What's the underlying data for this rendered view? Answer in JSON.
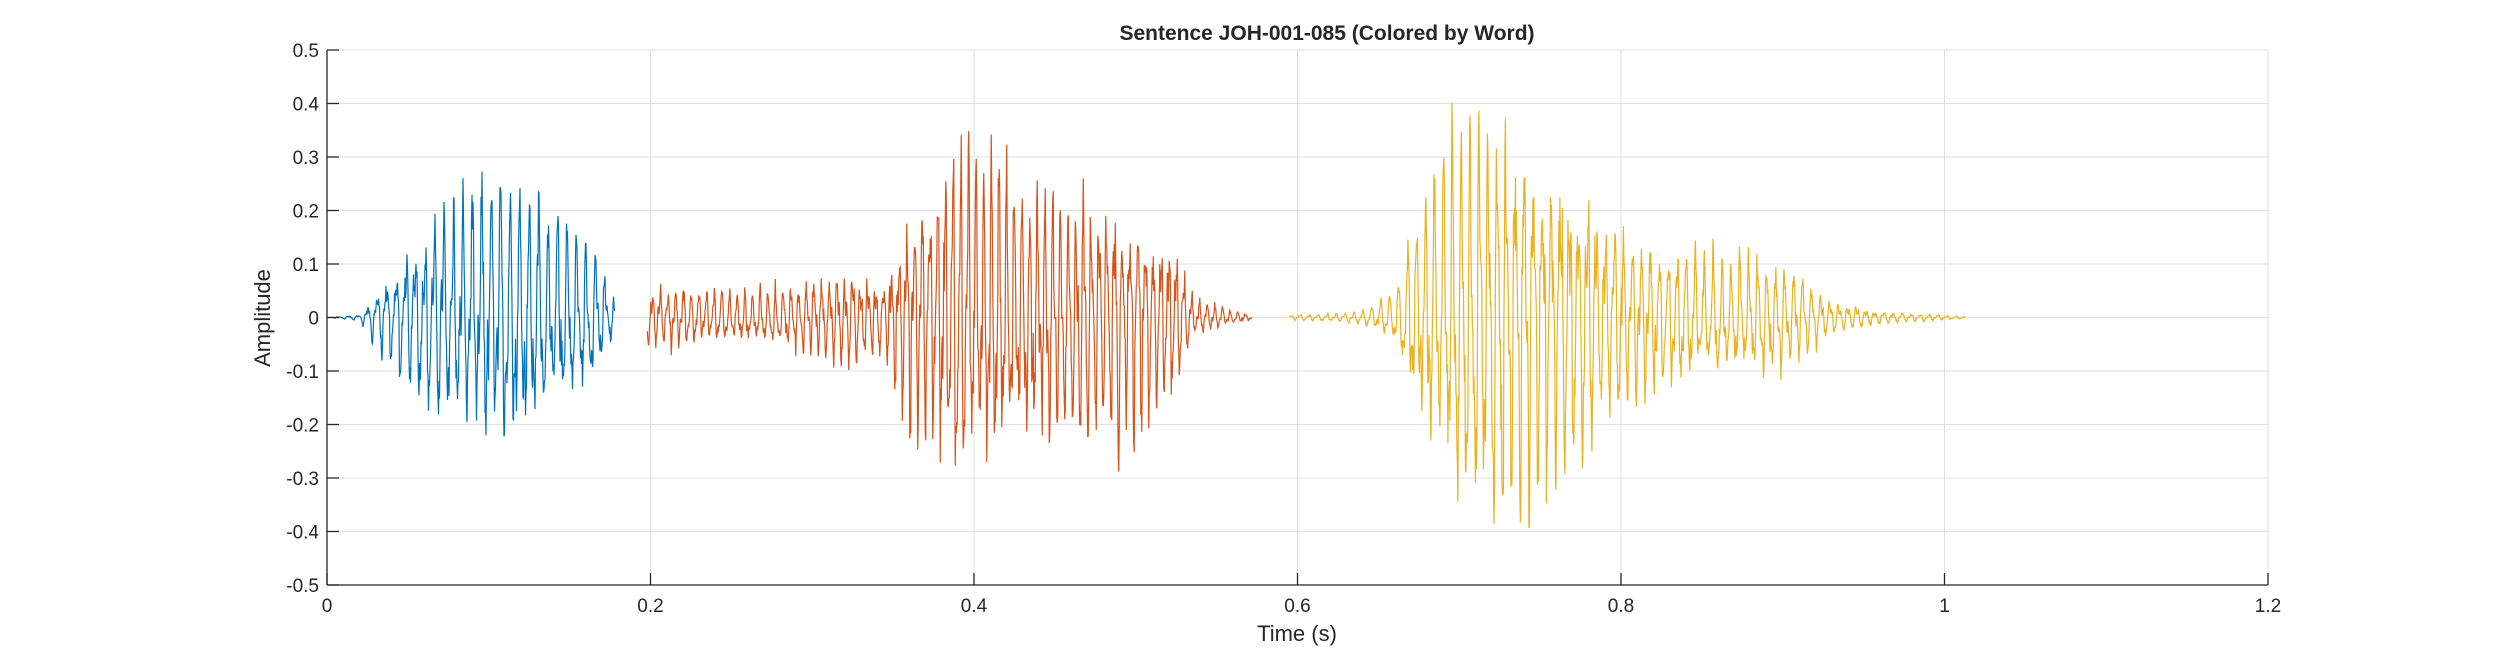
{
  "chart_data": {
    "type": "line",
    "title": "Sentence JOH-001-085 (Colored by Word)",
    "xlabel": "Time (s)",
    "ylabel": "Amplitude",
    "xlim": [
      0,
      1.2
    ],
    "ylim": [
      -0.5,
      0.5
    ],
    "xticks": [
      0,
      0.2,
      0.4,
      0.6,
      0.8,
      1,
      1.2
    ],
    "xtick_labels": [
      "0",
      "0.2",
      "0.4",
      "0.6",
      "0.8",
      "1",
      "1.2"
    ],
    "yticks": [
      0.5,
      0.4,
      0.3,
      0.2,
      0.1,
      0,
      -0.1,
      -0.2,
      -0.3,
      -0.4,
      -0.5
    ],
    "ytick_labels": [
      "0.5",
      "0.4",
      "0.3",
      "0.2",
      "0.1",
      "0",
      "-0.1",
      "-0.2",
      "-0.3",
      "-0.4",
      "-0.5"
    ],
    "grid": true,
    "legend": "none",
    "series": [
      {
        "color": "#0072BD",
        "t_start": 0.0,
        "t_end": 0.178,
        "freq_hz": 170,
        "envelope": [
          [
            0.0,
            0.0
          ],
          [
            0.02,
            0.005
          ],
          [
            0.035,
            0.07
          ],
          [
            0.06,
            0.17
          ],
          [
            0.09,
            0.24
          ],
          [
            0.11,
            0.25
          ],
          [
            0.13,
            0.21
          ],
          [
            0.15,
            0.17
          ],
          [
            0.165,
            0.13
          ],
          [
            0.178,
            0.03
          ]
        ]
      },
      {
        "color": "#D95319",
        "t_start": 0.198,
        "t_end": 0.572,
        "freq_hz": 210,
        "envelope": [
          [
            0.198,
            0.05
          ],
          [
            0.21,
            0.06
          ],
          [
            0.25,
            0.05
          ],
          [
            0.29,
            0.06
          ],
          [
            0.32,
            0.09
          ],
          [
            0.345,
            0.07
          ],
          [
            0.36,
            0.2
          ],
          [
            0.39,
            0.32
          ],
          [
            0.41,
            0.31
          ],
          [
            0.43,
            0.23
          ],
          [
            0.47,
            0.24
          ],
          [
            0.5,
            0.21
          ],
          [
            0.525,
            0.13
          ],
          [
            0.535,
            0.04
          ],
          [
            0.555,
            0.015
          ],
          [
            0.572,
            0.005
          ]
        ]
      },
      {
        "color": "#EDB120",
        "t_start": 0.595,
        "t_end": 1.013,
        "freq_hz": 180,
        "envelope": [
          [
            0.595,
            0.005
          ],
          [
            0.63,
            0.008
          ],
          [
            0.645,
            0.02
          ],
          [
            0.66,
            0.05
          ],
          [
            0.68,
            0.25
          ],
          [
            0.7,
            0.4
          ],
          [
            0.72,
            0.38
          ],
          [
            0.76,
            0.3
          ],
          [
            0.79,
            0.2
          ],
          [
            0.81,
            0.15
          ],
          [
            0.85,
            0.12
          ],
          [
            0.89,
            0.11
          ],
          [
            0.91,
            0.09
          ],
          [
            0.93,
            0.03
          ],
          [
            0.96,
            0.012
          ],
          [
            0.99,
            0.006
          ],
          [
            1.013,
            0.002
          ]
        ]
      }
    ]
  }
}
